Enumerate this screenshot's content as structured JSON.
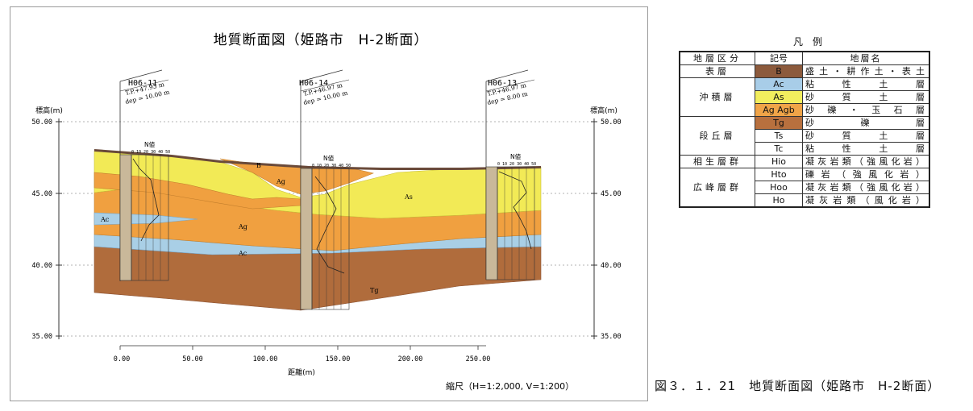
{
  "title": "地質断面図（姫路市　H-2断面）",
  "y_axis_label": "標高(m)",
  "y_axis_ticks": [
    "50.00",
    "45.00",
    "40.00",
    "35.00"
  ],
  "x_axis_label": "距離(m)",
  "x_axis_ticks": [
    "0.00",
    "50.00",
    "100.00",
    "150.00",
    "200.00",
    "250.00"
  ],
  "scale_note": "縮尺（H=1:2,000, V=1:200）",
  "n_value_header": "N値",
  "n_value_ticks": "0 10 20 30 40 50",
  "boreholes": [
    {
      "id": "H06-11",
      "tp": "T.P.+47.93 m",
      "dep": "dep = 10.00 m"
    },
    {
      "id": "H06-14",
      "tp": "T.P.+46.97 m",
      "dep": "dep = 10.00 m"
    },
    {
      "id": "H06-13",
      "tp": "T.P.+46.97 m",
      "dep": "dep = 8.00 m"
    }
  ],
  "layer_labels": [
    "B",
    "Ag",
    "As",
    "Ac",
    "Ag",
    "Ac",
    "Tg"
  ],
  "legend": {
    "title": "凡　例",
    "headers": [
      "地層区分",
      "記号",
      "地層名"
    ],
    "rows": [
      {
        "category": "表層",
        "symbol": "B",
        "name": "盛土・耕作土・表土",
        "color": "#8c5a3c"
      },
      {
        "category": "沖積層",
        "symbol": "Ac",
        "name": "粘性土層",
        "color": "#a8cde8"
      },
      {
        "category": "",
        "symbol": "As",
        "name": "砂質土層",
        "color": "#f2ee5e"
      },
      {
        "category": "",
        "symbol": "Ag Agb",
        "name": "砂礫・玉石層",
        "color": "#f0a448"
      },
      {
        "category": "段丘層",
        "symbol": "Tg",
        "name": "砂礫層",
        "color": "#b8703e"
      },
      {
        "category": "",
        "symbol": "Ts",
        "name": "砂質土層",
        "color": "#ffffff"
      },
      {
        "category": "",
        "symbol": "Tc",
        "name": "粘性土層",
        "color": "#ffffff"
      },
      {
        "category": "相生層群",
        "symbol": "Hio",
        "name": "凝灰岩類（強風化岩）",
        "color": "#ffffff"
      },
      {
        "category": "広峰層群",
        "symbol": "Hto",
        "name": "礫岩（強風化岩）",
        "color": "#ffffff"
      },
      {
        "category": "",
        "symbol": "Hoo",
        "name": "凝灰岩類（強風化岩）",
        "color": "#ffffff"
      },
      {
        "category": "",
        "symbol": "Ho",
        "name": "凝灰岩類（風化岩）",
        "color": "#ffffff"
      }
    ]
  },
  "caption": "図３．１．21　地質断面図（姫路市　H-2断面）",
  "colors": {
    "B": "#6a4a3a",
    "Ag": "#f0a040",
    "As": "#f2ea56",
    "Ac": "#a9cfe6",
    "Tg": "#b06c3c",
    "bore": "#c9b89a"
  }
}
